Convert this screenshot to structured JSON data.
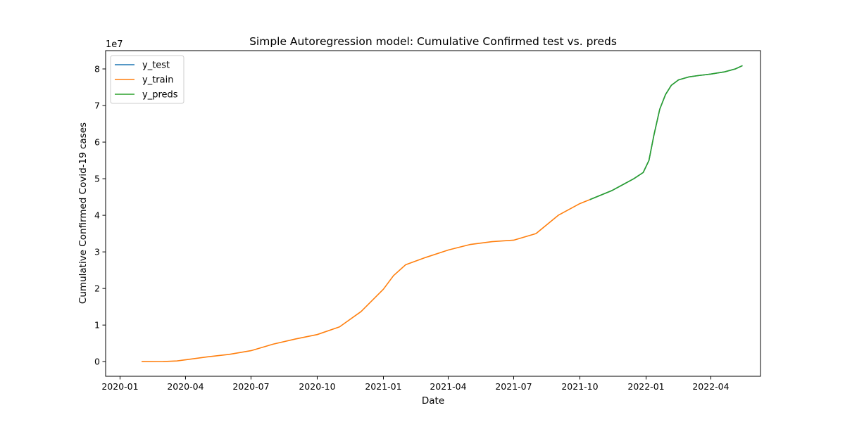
{
  "chart_data": {
    "type": "line",
    "title": "Simple Autoregression model: Cumulative Confirmed test vs. preds",
    "xlabel": "Date",
    "ylabel": "Cumulative Confirmed Covid-19 cases",
    "y_offset_label": "1e7",
    "x_range": [
      "2019-12-12",
      "2022-06-09"
    ],
    "y_range": [
      -4000000,
      85000000
    ],
    "x_ticks": [
      "2020-01-01",
      "2020-04-01",
      "2020-07-01",
      "2020-10-01",
      "2021-01-01",
      "2021-04-01",
      "2021-07-01",
      "2021-10-01",
      "2022-01-01",
      "2022-04-01"
    ],
    "x_tick_labels": [
      "2020-01",
      "2020-04",
      "2020-07",
      "2020-10",
      "2021-01",
      "2021-04",
      "2021-07",
      "2021-10",
      "2022-01",
      "2022-04"
    ],
    "y_ticks": [
      0,
      10000000,
      20000000,
      30000000,
      40000000,
      50000000,
      60000000,
      70000000,
      80000000
    ],
    "y_tick_labels": [
      "0",
      "1",
      "2",
      "3",
      "4",
      "5",
      "6",
      "7",
      "8"
    ],
    "legend_position": "top-left",
    "grid": false,
    "series": [
      {
        "name": "y_test",
        "color": "#1f77b4",
        "x": [
          "2021-10-15",
          "2021-11-15",
          "2021-12-15",
          "2021-12-28",
          "2022-01-05",
          "2022-01-12",
          "2022-01-20",
          "2022-01-28",
          "2022-02-05",
          "2022-02-15",
          "2022-03-01",
          "2022-03-15",
          "2022-04-01",
          "2022-04-20",
          "2022-05-05",
          "2022-05-15"
        ],
        "y": [
          44300000,
          46800000,
          50000000,
          51700000,
          55000000,
          62000000,
          69000000,
          73000000,
          75500000,
          77000000,
          77800000,
          78200000,
          78600000,
          79200000,
          80000000,
          80900000
        ]
      },
      {
        "name": "y_train",
        "color": "#ff7f0e",
        "x": [
          "2020-01-31",
          "2020-03-01",
          "2020-03-20",
          "2020-04-01",
          "2020-05-01",
          "2020-06-01",
          "2020-07-01",
          "2020-08-01",
          "2020-09-01",
          "2020-10-01",
          "2020-11-01",
          "2020-12-01",
          "2021-01-01",
          "2021-01-15",
          "2021-02-01",
          "2021-03-01",
          "2021-04-01",
          "2021-05-01",
          "2021-06-01",
          "2021-07-01",
          "2021-08-01",
          "2021-09-01",
          "2021-10-01",
          "2021-10-15"
        ],
        "y": [
          0,
          30000,
          200000,
          500000,
          1300000,
          2000000,
          3000000,
          4800000,
          6200000,
          7400000,
          9500000,
          13700000,
          19800000,
          23500000,
          26500000,
          28500000,
          30500000,
          32000000,
          32800000,
          33200000,
          35000000,
          40000000,
          43200000,
          44300000
        ]
      },
      {
        "name": "y_preds",
        "color": "#2ca02c",
        "x": [
          "2021-10-15",
          "2021-11-15",
          "2021-12-15",
          "2021-12-28",
          "2022-01-05",
          "2022-01-12",
          "2022-01-20",
          "2022-01-28",
          "2022-02-05",
          "2022-02-15",
          "2022-03-01",
          "2022-03-15",
          "2022-04-01",
          "2022-04-20",
          "2022-05-05",
          "2022-05-15"
        ],
        "y": [
          44300000,
          46800000,
          50000000,
          51700000,
          55000000,
          62000000,
          69000000,
          73000000,
          75500000,
          77000000,
          77800000,
          78200000,
          78600000,
          79200000,
          80000000,
          80900000
        ]
      }
    ]
  }
}
